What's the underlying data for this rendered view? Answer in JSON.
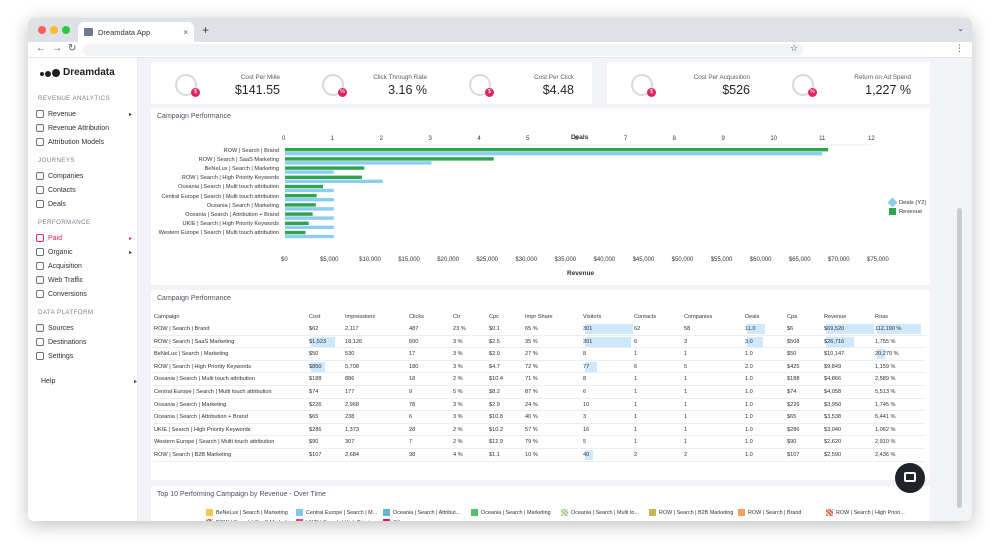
{
  "browser": {
    "tab_title": "Dreamdata App",
    "new_tab": "+",
    "close": "×",
    "window_menu": "⌄",
    "back": "←",
    "forward": "→",
    "reload": "↻",
    "star": "☆",
    "menu": "⋮",
    "colors": {
      "red": "#ff5f57",
      "yellow": "#febc2e",
      "green": "#28c840"
    }
  },
  "sidebar": {
    "logo": "Dreamdata",
    "sections": [
      {
        "title": "REVENUE ANALYTICS",
        "items": [
          {
            "label": "Revenue",
            "icon": "revenue-icon",
            "arrow": "▸"
          },
          {
            "label": "Revenue Attribution",
            "icon": "attribution-icon"
          },
          {
            "label": "Attribution Models",
            "icon": "models-icon"
          }
        ]
      },
      {
        "title": "JOURNEYS",
        "items": [
          {
            "label": "Companies",
            "icon": "companies-icon"
          },
          {
            "label": "Contacts",
            "icon": "contacts-icon"
          },
          {
            "label": "Deals",
            "icon": "deals-icon"
          }
        ]
      },
      {
        "title": "PERFORMANCE",
        "items": [
          {
            "label": "Paid",
            "icon": "paid-icon",
            "arrow": "▸",
            "active": true
          },
          {
            "label": "Organic",
            "icon": "organic-icon",
            "arrow": "▸"
          },
          {
            "label": "Acquisition",
            "icon": "acquisition-icon"
          },
          {
            "label": "Web Traffic",
            "icon": "web-traffic-icon"
          },
          {
            "label": "Conversions",
            "icon": "conversions-icon"
          }
        ]
      },
      {
        "title": "DATA PLATFORM",
        "items": [
          {
            "label": "Sources",
            "icon": "sources-icon"
          },
          {
            "label": "Destinations",
            "icon": "destinations-icon"
          },
          {
            "label": "Settings",
            "icon": "settings-icon"
          }
        ]
      }
    ],
    "help": {
      "label": "Help",
      "arrow": "▸"
    },
    "accent": "#e0245e"
  },
  "kpis": [
    {
      "label": "Cost Per Mille",
      "value": "$141.55",
      "badge": "$"
    },
    {
      "label": "Click Through Rate",
      "value": "3.16 %",
      "badge": "%"
    },
    {
      "label": "Cost Per Click",
      "value": "$4.48",
      "badge": "$"
    },
    {
      "label": "Cost Per Acquisition",
      "value": "$526",
      "badge": "$"
    },
    {
      "label": "Return on Ad Spend",
      "value": "1,227 %",
      "badge": "%"
    }
  ],
  "campaign_chart": {
    "title": "Campaign Performance",
    "chart_data": {
      "type": "bar",
      "orientation": "horizontal",
      "categories": [
        "ROW | Search | Brand",
        "ROW | Search | SaaS Marketing",
        "BeNeLux | Search | Marketing",
        "ROW | Search | High Priority Keywords",
        "Oceania | Search | Multi touch attribution",
        "Central Europe | Search | Multi touch attribution",
        "Oceania | Search | Marketing",
        "Oceania | Search | Attribution + Brand",
        "UKIE | Search | High Priority Keywords",
        "Western Europe | Search | Multi touch attribution"
      ],
      "top_axis": {
        "label": "Deals",
        "ticks": [
          "0",
          "1",
          "2",
          "3",
          "4",
          "5",
          "6",
          "7",
          "8",
          "9",
          "10",
          "11",
          "12"
        ],
        "range": [
          0,
          12
        ]
      },
      "bottom_axis": {
        "label": "Revenue",
        "ticks": [
          "$0",
          "$5,000",
          "$10,000",
          "$15,000",
          "$20,000",
          "$25,000",
          "$30,000",
          "$35,000",
          "$40,000",
          "$45,000",
          "$50,000",
          "$55,000",
          "$60,000",
          "$65,000",
          "$70,000",
          "$75,000"
        ],
        "range": [
          0,
          75000
        ]
      },
      "series": [
        {
          "name": "Deals (Y2)",
          "axis": "deals",
          "color": "#8ecdf2",
          "values": [
            11,
            3,
            1,
            2,
            1,
            1,
            1,
            1,
            1,
            1
          ]
        },
        {
          "name": "Revenue",
          "axis": "revenue",
          "color": "#2ea44f",
          "values": [
            69520,
            26716,
            10147,
            9849,
            4866,
            4058,
            3950,
            3538,
            3040,
            2620
          ]
        }
      ],
      "legend": "right"
    }
  },
  "table": {
    "title": "Campaign Performance",
    "columns": [
      "Campaign",
      "Cost",
      "Impressions",
      "Clicks",
      "Ctr",
      "Cpc",
      "Impr Share",
      "Visitors",
      "Contacts",
      "Companies",
      "Deals",
      "Cpa",
      "Revenue",
      "Roas"
    ],
    "rows": [
      [
        "ROW | Search | Brand",
        "$62",
        "2,117",
        "487",
        "23 %",
        "$0.1",
        "65 %",
        "301",
        "62",
        "58",
        "11.0",
        "$6",
        "$69,520",
        "112,190 %"
      ],
      [
        "ROW | Search | SaaS Marketing",
        "$1,523",
        "18,126",
        "600",
        "3 %",
        "$2.5",
        "35 %",
        "301",
        "6",
        "3",
        "3.0",
        "$508",
        "$26,716",
        "1,755 %"
      ],
      [
        "BeNeLux | Search | Marketing",
        "$50",
        "530",
        "17",
        "3 %",
        "$2.9",
        "27 %",
        "8",
        "1",
        "1",
        "1.0",
        "$50",
        "$10,147",
        "20,279 %"
      ],
      [
        "ROW | Search | High Priority Keywords",
        "$850",
        "5,708",
        "180",
        "3 %",
        "$4.7",
        "72 %",
        "77",
        "6",
        "5",
        "2.0",
        "$425",
        "$9,849",
        "1,159 %"
      ],
      [
        "Oceania | Search | Multi touch attribution",
        "$188",
        "886",
        "18",
        "2 %",
        "$10.4",
        "71 %",
        "8",
        "1",
        "1",
        "1.0",
        "$188",
        "$4,866",
        "2,589 %"
      ],
      [
        "Central Europe | Search | Multi touch attribution",
        "$74",
        "177",
        "9",
        "5 %",
        "$8.2",
        "87 %",
        "6",
        "1",
        "1",
        "1.0",
        "$74",
        "$4,058",
        "5,513 %"
      ],
      [
        "Oceania | Search | Marketing",
        "$226",
        "2,968",
        "78",
        "3 %",
        "$2.9",
        "24 %",
        "10",
        "1",
        "1",
        "1.0",
        "$226",
        "$3,950",
        "1,745 %"
      ],
      [
        "Oceania | Search | Attribution + Brand",
        "$65",
        "238",
        "6",
        "3 %",
        "$10.8",
        "40 %",
        "3",
        "1",
        "1",
        "1.0",
        "$65",
        "$3,538",
        "5,441 %"
      ],
      [
        "UKIE | Search | High Priority Keywords",
        "$286",
        "1,373",
        "28",
        "2 %",
        "$10.2",
        "57 %",
        "16",
        "1",
        "1",
        "1.0",
        "$286",
        "$3,040",
        "1,062 %"
      ],
      [
        "Western Europe | Search | Multi touch attribution",
        "$90",
        "307",
        "7",
        "2 %",
        "$12.9",
        "79 %",
        "5",
        "1",
        "1",
        "1.0",
        "$90",
        "$2,620",
        "2,910 %"
      ],
      [
        "ROW | Search | B2B Marketing",
        "$107",
        "2,684",
        "98",
        "4 %",
        "$1.1",
        "10 %",
        "40",
        "2",
        "2",
        "1.0",
        "$107",
        "$2,590",
        "2,436 %"
      ]
    ]
  },
  "bottom_chart": {
    "title": "Top 10 Performing Campaign by Revenue - Over Time",
    "legend": [
      {
        "label": "BeNeLux | Search | Marketing",
        "color": "#f2c94c",
        "pattern": false
      },
      {
        "label": "Central Europe | Search | M...",
        "color": "#7fc8f2",
        "pattern": false
      },
      {
        "label": "Oceania | Search | Attribut...",
        "color": "#5fb8d9",
        "pattern": false
      },
      {
        "label": "Oceania | Search | Marketing",
        "color": "#55c06a",
        "pattern": false
      },
      {
        "label": "Oceania | Search | Multi to...",
        "color": "#a8d08d",
        "pattern": true
      },
      {
        "label": "ROW | Search | B2B Marketing",
        "color": "#c9b458",
        "pattern": false
      },
      {
        "label": "ROW | Search | Brand",
        "color": "#f4a261",
        "pattern": false
      },
      {
        "label": "ROW | Search | High Priori...",
        "color": "#e76f51",
        "pattern": true
      },
      {
        "label": "ROW | Search | SaaS Marketing",
        "color": "#e9573f",
        "pattern": true
      },
      {
        "label": "UKIE | Search | High Priori...",
        "color": "#d94b7b",
        "pattern": false
      },
      {
        "label": "Other",
        "color": "#d81b60",
        "pattern": false
      }
    ]
  }
}
